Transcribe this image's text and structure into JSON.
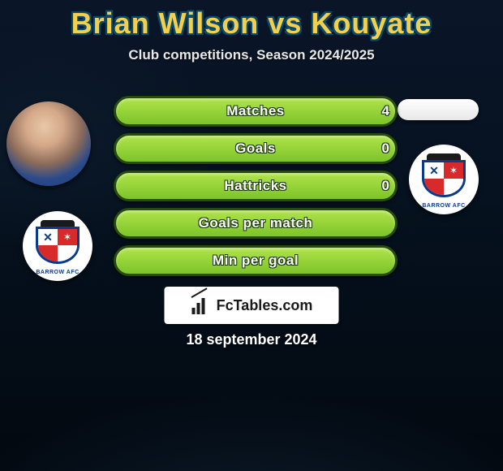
{
  "title": "Brian Wilson vs Kouyate",
  "subtitle": "Club competitions, Season 2024/2025",
  "date": "18 september 2024",
  "brand": "FcTables.com",
  "colors": {
    "title_color": "#f4cf4d",
    "title_outline": "#0a4a6a",
    "bar_fill_top": "#b0e34a",
    "bar_fill_bottom": "#7cc42a",
    "bar_border": "#274a0e",
    "bg_top": "#0a1628",
    "bg_bottom": "#02080f"
  },
  "player_left": {
    "name": "Brian Wilson",
    "club": "BARROW AFC"
  },
  "player_right": {
    "name": "Kouyate",
    "club": "BARROW AFC"
  },
  "stats": [
    {
      "label": "Matches",
      "left_value": "4",
      "right_value": "",
      "left_fill": 1.0,
      "right_fill": 0
    },
    {
      "label": "Goals",
      "left_value": "0",
      "right_value": "",
      "left_fill": 1.0,
      "right_fill": 0
    },
    {
      "label": "Hattricks",
      "left_value": "0",
      "right_value": "",
      "left_fill": 1.0,
      "right_fill": 0
    },
    {
      "label": "Goals per match",
      "left_value": "",
      "right_value": "",
      "left_fill": 1.0,
      "right_fill": 0
    },
    {
      "label": "Min per goal",
      "left_value": "",
      "right_value": "",
      "left_fill": 1.0,
      "right_fill": 0
    }
  ]
}
